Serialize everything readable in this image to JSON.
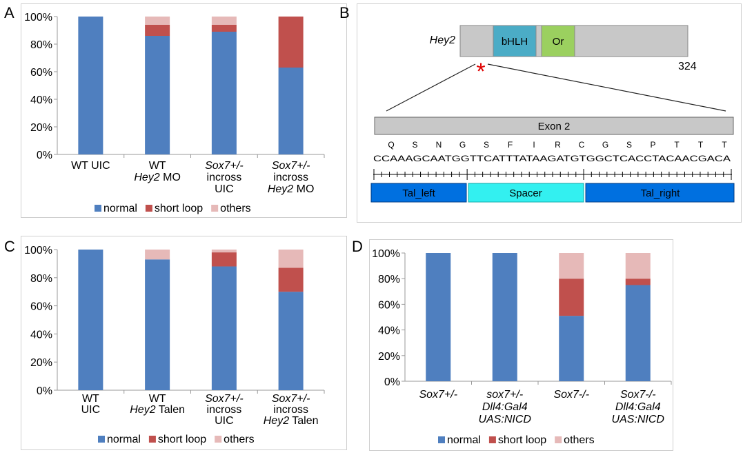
{
  "panels": {
    "A": "A",
    "B": "B",
    "C": "C",
    "D": "D"
  },
  "legend": {
    "normal": "normal",
    "short_loop": "short loop",
    "others": "others"
  },
  "colors": {
    "normal": "#4f7fbf",
    "short_loop": "#c0504d",
    "others": "#e6b9b8",
    "bhlh": "#4bacc6",
    "orange_domain": "#9bd05f",
    "protein_bar": "#c8c8c8",
    "tal_arm": "#0070e0",
    "spacer": "#33f0f0",
    "asterisk": "#e00000"
  },
  "chart_data": [
    {
      "panel": "A",
      "type": "bar",
      "stacked": true,
      "categories": [
        [
          "WT UIC"
        ],
        [
          "WT",
          "Hey2 MO"
        ],
        [
          "Sox7+/-",
          "incross",
          "UIC"
        ],
        [
          "Sox7+/-",
          "incross",
          "Hey2 MO"
        ]
      ],
      "series": [
        {
          "name": "normal",
          "values": [
            100,
            86,
            89,
            63
          ]
        },
        {
          "name": "short loop",
          "values": [
            0,
            8,
            5,
            37
          ]
        },
        {
          "name": "others",
          "values": [
            0,
            6,
            6,
            0
          ]
        }
      ],
      "yticks": [
        "0%",
        "20%",
        "40%",
        "60%",
        "80%",
        "100%"
      ],
      "ylim": [
        0,
        100
      ],
      "legend_position": "bottom"
    },
    {
      "panel": "C",
      "type": "bar",
      "stacked": true,
      "categories": [
        [
          "WT",
          "UIC"
        ],
        [
          "WT",
          "Hey2 Talen"
        ],
        [
          "Sox7+/-",
          "incross",
          "UIC"
        ],
        [
          "Sox7+/-",
          "incross",
          "Hey2 Talen"
        ]
      ],
      "series": [
        {
          "name": "normal",
          "values": [
            100,
            93,
            88,
            70
          ]
        },
        {
          "name": "short loop",
          "values": [
            0,
            0,
            10,
            17
          ]
        },
        {
          "name": "others",
          "values": [
            0,
            7,
            2,
            13
          ]
        }
      ],
      "yticks": [
        "0%",
        "20%",
        "40%",
        "60%",
        "80%",
        "100%"
      ],
      "ylim": [
        0,
        100
      ],
      "legend_position": "bottom"
    },
    {
      "panel": "D",
      "type": "bar",
      "stacked": true,
      "categories": [
        [
          "Sox7+/-"
        ],
        [
          "sox7+/-",
          "Dll4:Gal4",
          "UAS:NICD"
        ],
        [
          "Sox7-/-"
        ],
        [
          "Sox7-/-",
          "Dll4:Gal4",
          "UAS:NICD"
        ]
      ],
      "series": [
        {
          "name": "normal",
          "values": [
            100,
            100,
            51,
            75
          ]
        },
        {
          "name": "short loop",
          "values": [
            0,
            0,
            29,
            5
          ]
        },
        {
          "name": "others",
          "values": [
            0,
            0,
            20,
            20
          ]
        }
      ],
      "yticks": [
        "0%",
        "20%",
        "40%",
        "60%",
        "80%",
        "100%"
      ],
      "ylim": [
        0,
        100
      ],
      "legend_position": "bottom"
    }
  ],
  "diagram": {
    "gene": "Hey2",
    "domain_bhlh": "bHLH",
    "domain_orange": "Or",
    "length": "324",
    "asterisk": "*",
    "exon_label": "Exon 2",
    "amino_acids": [
      "Q",
      "S",
      "N",
      "G",
      "S",
      "F",
      "I",
      "R",
      "C",
      "G",
      "S",
      "P",
      "T",
      "T",
      "T"
    ],
    "dna": "CCAAAGCAATGGTTCATTTATAAGATGTGGCTCACCTACAACGACA",
    "tal_left": "Tal_left",
    "spacer": "Spacer",
    "tal_right": "Tal_right"
  }
}
